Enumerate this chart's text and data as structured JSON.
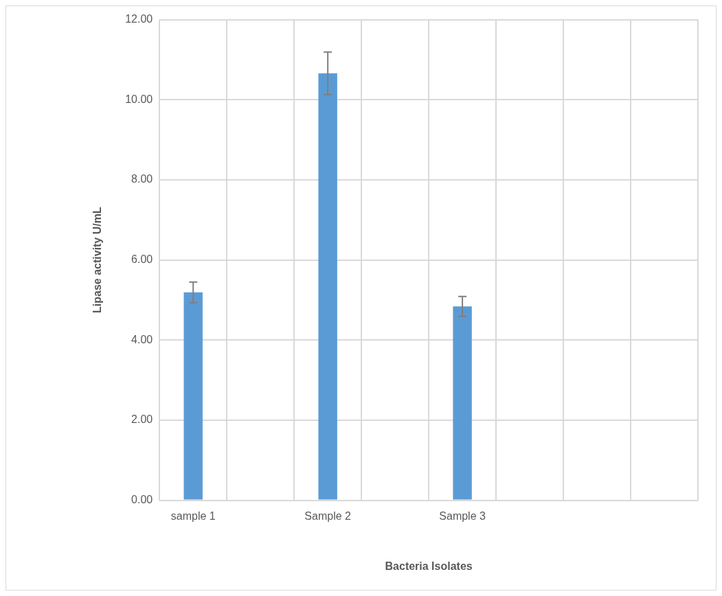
{
  "chart_data": {
    "type": "bar",
    "xlabel": "Bacteria Isolates",
    "ylabel": "Lipase activity U/mL",
    "categories": [
      "sample 1",
      null,
      "Sample 2",
      null,
      "Sample 3",
      null,
      null,
      null
    ],
    "values": [
      5.19,
      null,
      10.66,
      null,
      4.84,
      null,
      null,
      null
    ],
    "errors": [
      0.26,
      null,
      0.53,
      null,
      0.25,
      null,
      null,
      null
    ],
    "color": "#5b9bd5",
    "ylim": [
      0,
      12
    ],
    "yticks": [
      {
        "value": 0,
        "label": "0.00"
      },
      {
        "value": 2,
        "label": "2.00"
      },
      {
        "value": 4,
        "label": "4.00"
      },
      {
        "value": 6,
        "label": "6.00"
      },
      {
        "value": 8,
        "label": "8.00"
      },
      {
        "value": 10,
        "label": "10.00"
      },
      {
        "value": 12,
        "label": "12.00"
      }
    ],
    "grid": true,
    "legend": false
  }
}
